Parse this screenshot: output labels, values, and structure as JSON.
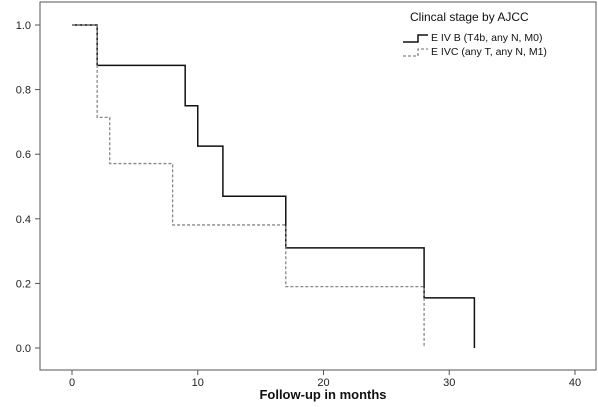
{
  "chart_data": {
    "type": "line",
    "title": "",
    "xlabel": "Follow-up in months",
    "ylabel": "",
    "xlim": [
      0,
      40
    ],
    "ylim": [
      0.0,
      1.0
    ],
    "x_ticks": [
      0,
      10,
      20,
      30,
      40
    ],
    "y_ticks": [
      0.0,
      0.2,
      0.4,
      0.6,
      0.8,
      1.0
    ],
    "x_tick_labels": [
      "0",
      "10",
      "20",
      "30",
      "40"
    ],
    "y_tick_labels": [
      "0.0",
      "0.2",
      "0.4",
      "0.6",
      "0.8",
      "1.0"
    ],
    "grid": false,
    "legend": {
      "title": "Clincal stage by AJCC",
      "placement": "top-right"
    },
    "series": [
      {
        "name": "E IV B (T4b, any N, M0)",
        "style": "solid",
        "color": "#111111",
        "steps": [
          {
            "x": 0,
            "y": 1.0
          },
          {
            "x": 2,
            "y": 0.875
          },
          {
            "x": 9,
            "y": 0.75
          },
          {
            "x": 10,
            "y": 0.625
          },
          {
            "x": 12,
            "y": 0.47
          },
          {
            "x": 17,
            "y": 0.31
          },
          {
            "x": 28,
            "y": 0.155
          },
          {
            "x": 32,
            "y": 0.0
          }
        ]
      },
      {
        "name": "E IVC (any T, any N, M1)",
        "style": "dashed",
        "color": "#888888",
        "steps": [
          {
            "x": 0,
            "y": 1.0
          },
          {
            "x": 2,
            "y": 0.714
          },
          {
            "x": 3,
            "y": 0.571
          },
          {
            "x": 8,
            "y": 0.381
          },
          {
            "x": 17,
            "y": 0.19
          },
          {
            "x": 28,
            "y": 0.0
          }
        ]
      }
    ]
  }
}
